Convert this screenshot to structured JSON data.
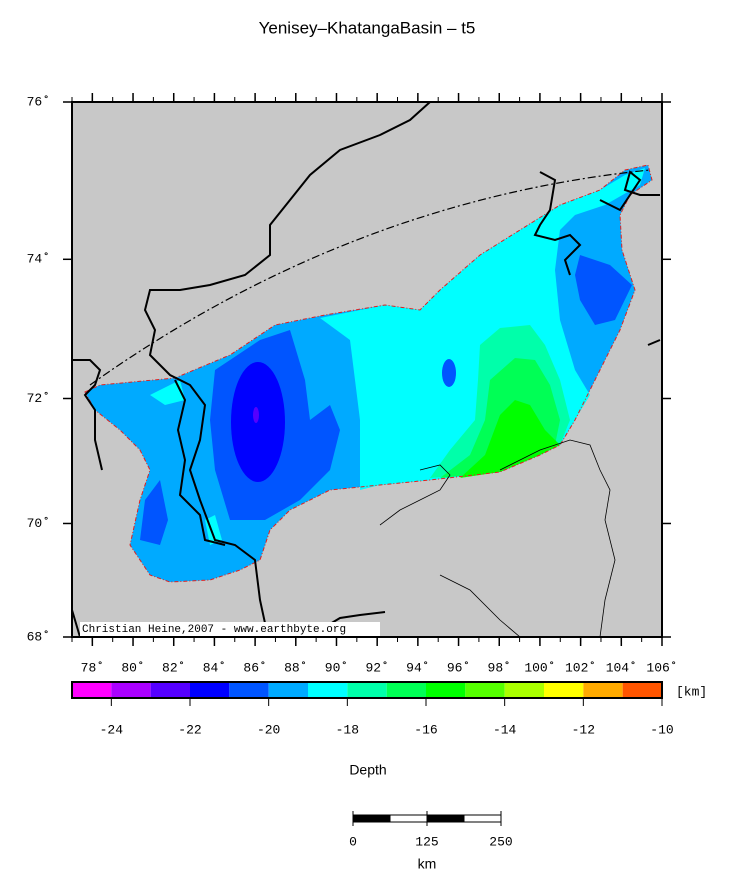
{
  "title": "Yenisey–KhatangaBasin – t5",
  "map": {
    "lon_range": [
      77,
      106
    ],
    "lat_range": [
      68,
      76
    ],
    "lon_ticks": [
      {
        "value": 78,
        "label": "78˚"
      },
      {
        "value": 80,
        "label": "80˚"
      },
      {
        "value": 82,
        "label": "82˚"
      },
      {
        "value": 84,
        "label": "84˚"
      },
      {
        "value": 86,
        "label": "86˚"
      },
      {
        "value": 88,
        "label": "88˚"
      },
      {
        "value": 90,
        "label": "90˚"
      },
      {
        "value": 92,
        "label": "92˚"
      },
      {
        "value": 94,
        "label": "94˚"
      },
      {
        "value": 96,
        "label": "96˚"
      },
      {
        "value": 98,
        "label": "98˚"
      },
      {
        "value": 100,
        "label": "100˚"
      },
      {
        "value": 102,
        "label": "102˚"
      },
      {
        "value": 104,
        "label": "104˚"
      },
      {
        "value": 106,
        "label": "106˚"
      }
    ],
    "lat_ticks": [
      {
        "value": 68,
        "label": "68˚"
      },
      {
        "value": 70,
        "label": "70˚"
      },
      {
        "value": 72,
        "label": "72˚"
      },
      {
        "value": 74,
        "label": "74˚"
      },
      {
        "value": 76,
        "label": "76˚"
      }
    ],
    "credit": "Christian Heine,2007 - www.earthbyte.org"
  },
  "colorbar": {
    "label": "Depth",
    "unit": "[km]",
    "range": [
      -25,
      -10
    ],
    "bins": [
      -25,
      -24,
      -23,
      -22,
      -21,
      -20,
      -19,
      -18,
      -17,
      -16,
      -15,
      -14,
      -13,
      -12,
      -11,
      -10
    ],
    "colors": [
      "#ff00ff",
      "#aa00ff",
      "#5500ff",
      "#0000ff",
      "#0055ff",
      "#00aaff",
      "#00ffff",
      "#00ffaa",
      "#00ff55",
      "#00ff00",
      "#55ff00",
      "#aaff00",
      "#ffff00",
      "#ffaa00",
      "#ff5500"
    ],
    "ticks": [
      -24,
      -22,
      -20,
      -18,
      -16,
      -14,
      -12,
      -10
    ]
  },
  "scale_bar": {
    "ticks": [
      0,
      125,
      250
    ],
    "unit": "km"
  }
}
